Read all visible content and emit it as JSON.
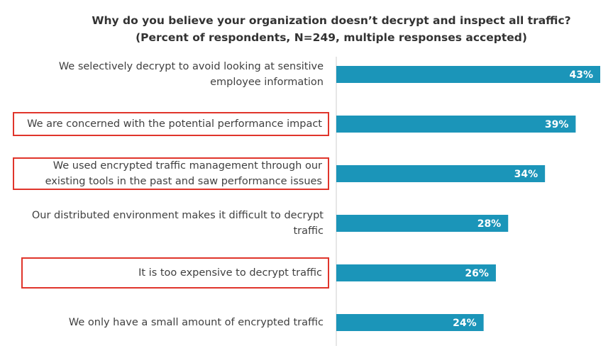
{
  "chart_data": {
    "type": "bar",
    "orientation": "horizontal",
    "title": "Why do you believe your organization doesn’t decrypt and inspect all traffic?",
    "subtitle": "(Percent of respondents, N=249, multiple responses accepted)",
    "categories": [
      "We selectively decrypt to avoid looking at sensitive employee information",
      "We are concerned with the potential performance impact",
      "We used encrypted traffic management through our existing tools in the past and saw performance issues",
      "Our distributed environment makes it difficult to decrypt traffic",
      "It is too expensive to decrypt traffic",
      "We only have a small amount of encrypted traffic"
    ],
    "values": [
      43,
      39,
      34,
      28,
      26,
      24
    ],
    "value_labels": [
      "43%",
      "39%",
      "34%",
      "28%",
      "26%",
      "24%"
    ],
    "highlight": [
      false,
      true,
      true,
      false,
      true,
      false
    ],
    "color": "#1b95b9",
    "highlight_color": "#e0352b"
  }
}
